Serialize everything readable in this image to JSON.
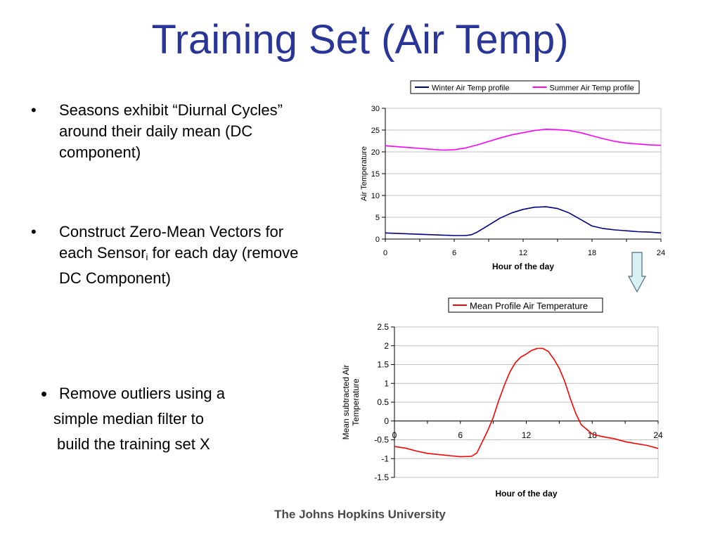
{
  "slide": {
    "title": "Training Set (Air Temp)",
    "footer": "The Johns Hopkins University",
    "bullets": [
      {
        "marker": "•",
        "text": "Seasons exhibit “Diurnal Cycles” around their daily mean (DC component)"
      },
      {
        "marker": "•",
        "text_before": "Construct Zero-Mean Vectors for each Sensor",
        "subscript": "i",
        "text_after": " for each day (remove DC Component)"
      },
      {
        "marker": "•",
        "line1": "Remove outliers using a",
        "line2": "simple median filter to",
        "line3": "build the training set X"
      }
    ]
  },
  "chart_data": [
    {
      "type": "line",
      "title": "",
      "xlabel": "Hour of the day",
      "ylabel": "Air Temperature",
      "xlim": [
        0,
        24
      ],
      "ylim": [
        0,
        30
      ],
      "xticks": [
        0,
        6,
        12,
        18,
        24
      ],
      "yticks": [
        0,
        5,
        10,
        15,
        20,
        25,
        30
      ],
      "grid": "horizontal",
      "legend": "top",
      "series": [
        {
          "name": "Winter Air Temp profile",
          "color": "#000080",
          "x": [
            0,
            1,
            2,
            3,
            4,
            5,
            6,
            7,
            7.5,
            8,
            9,
            10,
            11,
            12,
            13,
            14,
            15,
            16,
            17,
            18,
            19,
            20,
            21,
            22,
            23,
            24
          ],
          "y": [
            1.4,
            1.3,
            1.2,
            1.1,
            1.0,
            0.9,
            0.8,
            0.8,
            1.0,
            1.6,
            3.2,
            4.8,
            6.0,
            6.8,
            7.3,
            7.4,
            7.0,
            6.0,
            4.5,
            3.0,
            2.4,
            2.1,
            1.9,
            1.7,
            1.6,
            1.4
          ]
        },
        {
          "name": "Summer Air Temp profile",
          "color": "#ff00ff",
          "x": [
            0,
            1,
            2,
            3,
            4,
            5,
            6,
            7,
            8,
            9,
            10,
            11,
            12,
            13,
            14,
            15,
            16,
            17,
            18,
            19,
            20,
            21,
            22,
            23,
            24
          ],
          "y": [
            21.4,
            21.2,
            21.0,
            20.8,
            20.6,
            20.4,
            20.5,
            20.9,
            21.6,
            22.4,
            23.2,
            23.9,
            24.4,
            24.9,
            25.2,
            25.1,
            24.9,
            24.4,
            23.7,
            23.0,
            22.4,
            22.0,
            21.8,
            21.6,
            21.5
          ]
        }
      ]
    },
    {
      "type": "line",
      "title": "",
      "xlabel": "Hour of the day",
      "ylabel": "Mean subtracted Air Temperature",
      "xlim": [
        0,
        24
      ],
      "ylim": [
        -1.5,
        2.5
      ],
      "xticks": [
        0,
        6,
        12,
        18,
        24
      ],
      "yticks": [
        -1.5,
        -1,
        -0.5,
        0,
        0.5,
        1,
        1.5,
        2,
        2.5
      ],
      "grid": "horizontal",
      "legend": "top",
      "series": [
        {
          "name": "Mean Profile Air Temperature",
          "color": "#ff0000",
          "x": [
            0,
            1,
            2,
            3,
            4,
            5,
            6,
            7,
            7.5,
            8,
            8.5,
            9,
            9.5,
            10,
            10.5,
            11,
            11.5,
            12,
            12.5,
            13,
            13.5,
            14,
            14.5,
            15,
            15.5,
            16,
            16.5,
            17,
            17.5,
            18,
            19,
            20,
            21,
            22,
            23,
            24
          ],
          "y": [
            -0.68,
            -0.72,
            -0.8,
            -0.86,
            -0.89,
            -0.92,
            -0.95,
            -0.94,
            -0.85,
            -0.55,
            -0.25,
            0.1,
            0.55,
            0.95,
            1.3,
            1.55,
            1.7,
            1.78,
            1.88,
            1.93,
            1.93,
            1.85,
            1.65,
            1.4,
            1.05,
            0.6,
            0.2,
            -0.1,
            -0.22,
            -0.35,
            -0.42,
            -0.47,
            -0.55,
            -0.6,
            -0.65,
            -0.73
          ]
        }
      ]
    }
  ],
  "arrow": {
    "fill": "#d9f0f3",
    "stroke": "#4a6a8a"
  }
}
